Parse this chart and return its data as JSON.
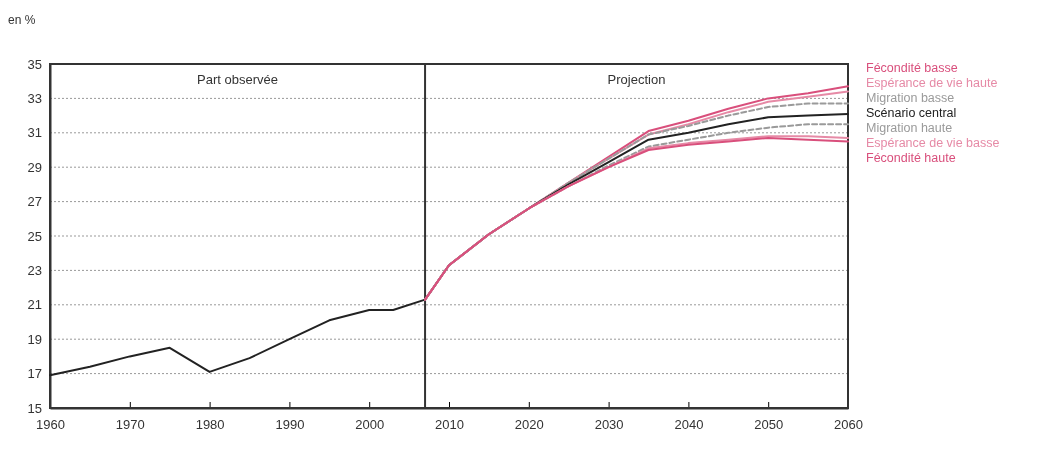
{
  "chart_data": {
    "type": "line",
    "ylabel": "en %",
    "xlim": [
      1960,
      2060
    ],
    "xticks": [
      1960,
      1970,
      1980,
      1990,
      2000,
      2010,
      2020,
      2030,
      2040,
      2050,
      2060
    ],
    "ylim": [
      15,
      35
    ],
    "yticks": [
      15,
      17,
      19,
      21,
      23,
      25,
      27,
      29,
      31,
      33,
      35
    ],
    "grid": "y",
    "legend": "right",
    "marker": "none",
    "ref_lines": [
      {
        "axis": "x",
        "value": 2007,
        "color": "#333333"
      }
    ],
    "annotations": [
      "Part observée",
      "Projection"
    ],
    "series": [
      {
        "color": "#222222",
        "x": [
          1960,
          1965,
          1970,
          1975,
          1980,
          1985,
          1990,
          1995,
          2000,
          2003,
          2007
        ],
        "values": [
          16.9,
          17.4,
          18.0,
          18.5,
          17.1,
          17.9,
          19.0,
          20.1,
          20.7,
          20.7,
          21.3
        ]
      },
      {
        "name": "Fécondité basse",
        "color": "#d94f7c",
        "x": [
          2007,
          2010,
          2015,
          2020,
          2025,
          2030,
          2035,
          2040,
          2045,
          2050,
          2055,
          2060
        ],
        "values": [
          21.3,
          23.3,
          25.1,
          26.6,
          28.1,
          29.6,
          31.1,
          31.7,
          32.4,
          33.0,
          33.3,
          33.7
        ]
      },
      {
        "name": "Espérance de vie haute",
        "color": "#e68aa6",
        "x": [
          2007,
          2010,
          2015,
          2020,
          2025,
          2030,
          2035,
          2040,
          2045,
          2050,
          2055,
          2060
        ],
        "values": [
          21.3,
          23.3,
          25.1,
          26.6,
          28.1,
          29.5,
          30.9,
          31.5,
          32.2,
          32.8,
          33.1,
          33.4
        ]
      },
      {
        "name": "Migration basse",
        "color": "#9a9a9a",
        "line_style": "dashed",
        "x": [
          2007,
          2010,
          2015,
          2020,
          2025,
          2030,
          2035,
          2040,
          2045,
          2050,
          2055,
          2060
        ],
        "values": [
          21.3,
          23.3,
          25.1,
          26.6,
          28.1,
          29.5,
          30.9,
          31.4,
          32.0,
          32.5,
          32.7,
          32.7
        ]
      },
      {
        "name": "Scénario central",
        "color": "#222222",
        "x": [
          2007,
          2010,
          2015,
          2020,
          2025,
          2030,
          2035,
          2040,
          2045,
          2050,
          2055,
          2060
        ],
        "values": [
          21.3,
          23.3,
          25.1,
          26.6,
          28.0,
          29.3,
          30.6,
          31.0,
          31.5,
          31.9,
          32.0,
          32.1
        ]
      },
      {
        "name": "Migration haute",
        "color": "#9a9a9a",
        "line_style": "dashed",
        "x": [
          2007,
          2010,
          2015,
          2020,
          2025,
          2030,
          2035,
          2040,
          2045,
          2050,
          2055,
          2060
        ],
        "values": [
          21.3,
          23.3,
          25.1,
          26.6,
          27.9,
          29.1,
          30.2,
          30.6,
          31.0,
          31.3,
          31.5,
          31.5
        ]
      },
      {
        "name": "Espérance de vie basse",
        "color": "#e68aa6",
        "x": [
          2007,
          2010,
          2015,
          2020,
          2025,
          2030,
          2035,
          2040,
          2045,
          2050,
          2055,
          2060
        ],
        "values": [
          21.3,
          23.3,
          25.1,
          26.6,
          27.9,
          29.0,
          30.1,
          30.4,
          30.6,
          30.8,
          30.8,
          30.7
        ]
      },
      {
        "name": "Fécondité haute",
        "color": "#d94f7c",
        "x": [
          2007,
          2010,
          2015,
          2020,
          2025,
          2030,
          2035,
          2040,
          2045,
          2050,
          2055,
          2060
        ],
        "values": [
          21.3,
          23.3,
          25.1,
          26.6,
          27.9,
          29.0,
          30.0,
          30.3,
          30.5,
          30.7,
          30.6,
          30.5
        ]
      }
    ]
  }
}
